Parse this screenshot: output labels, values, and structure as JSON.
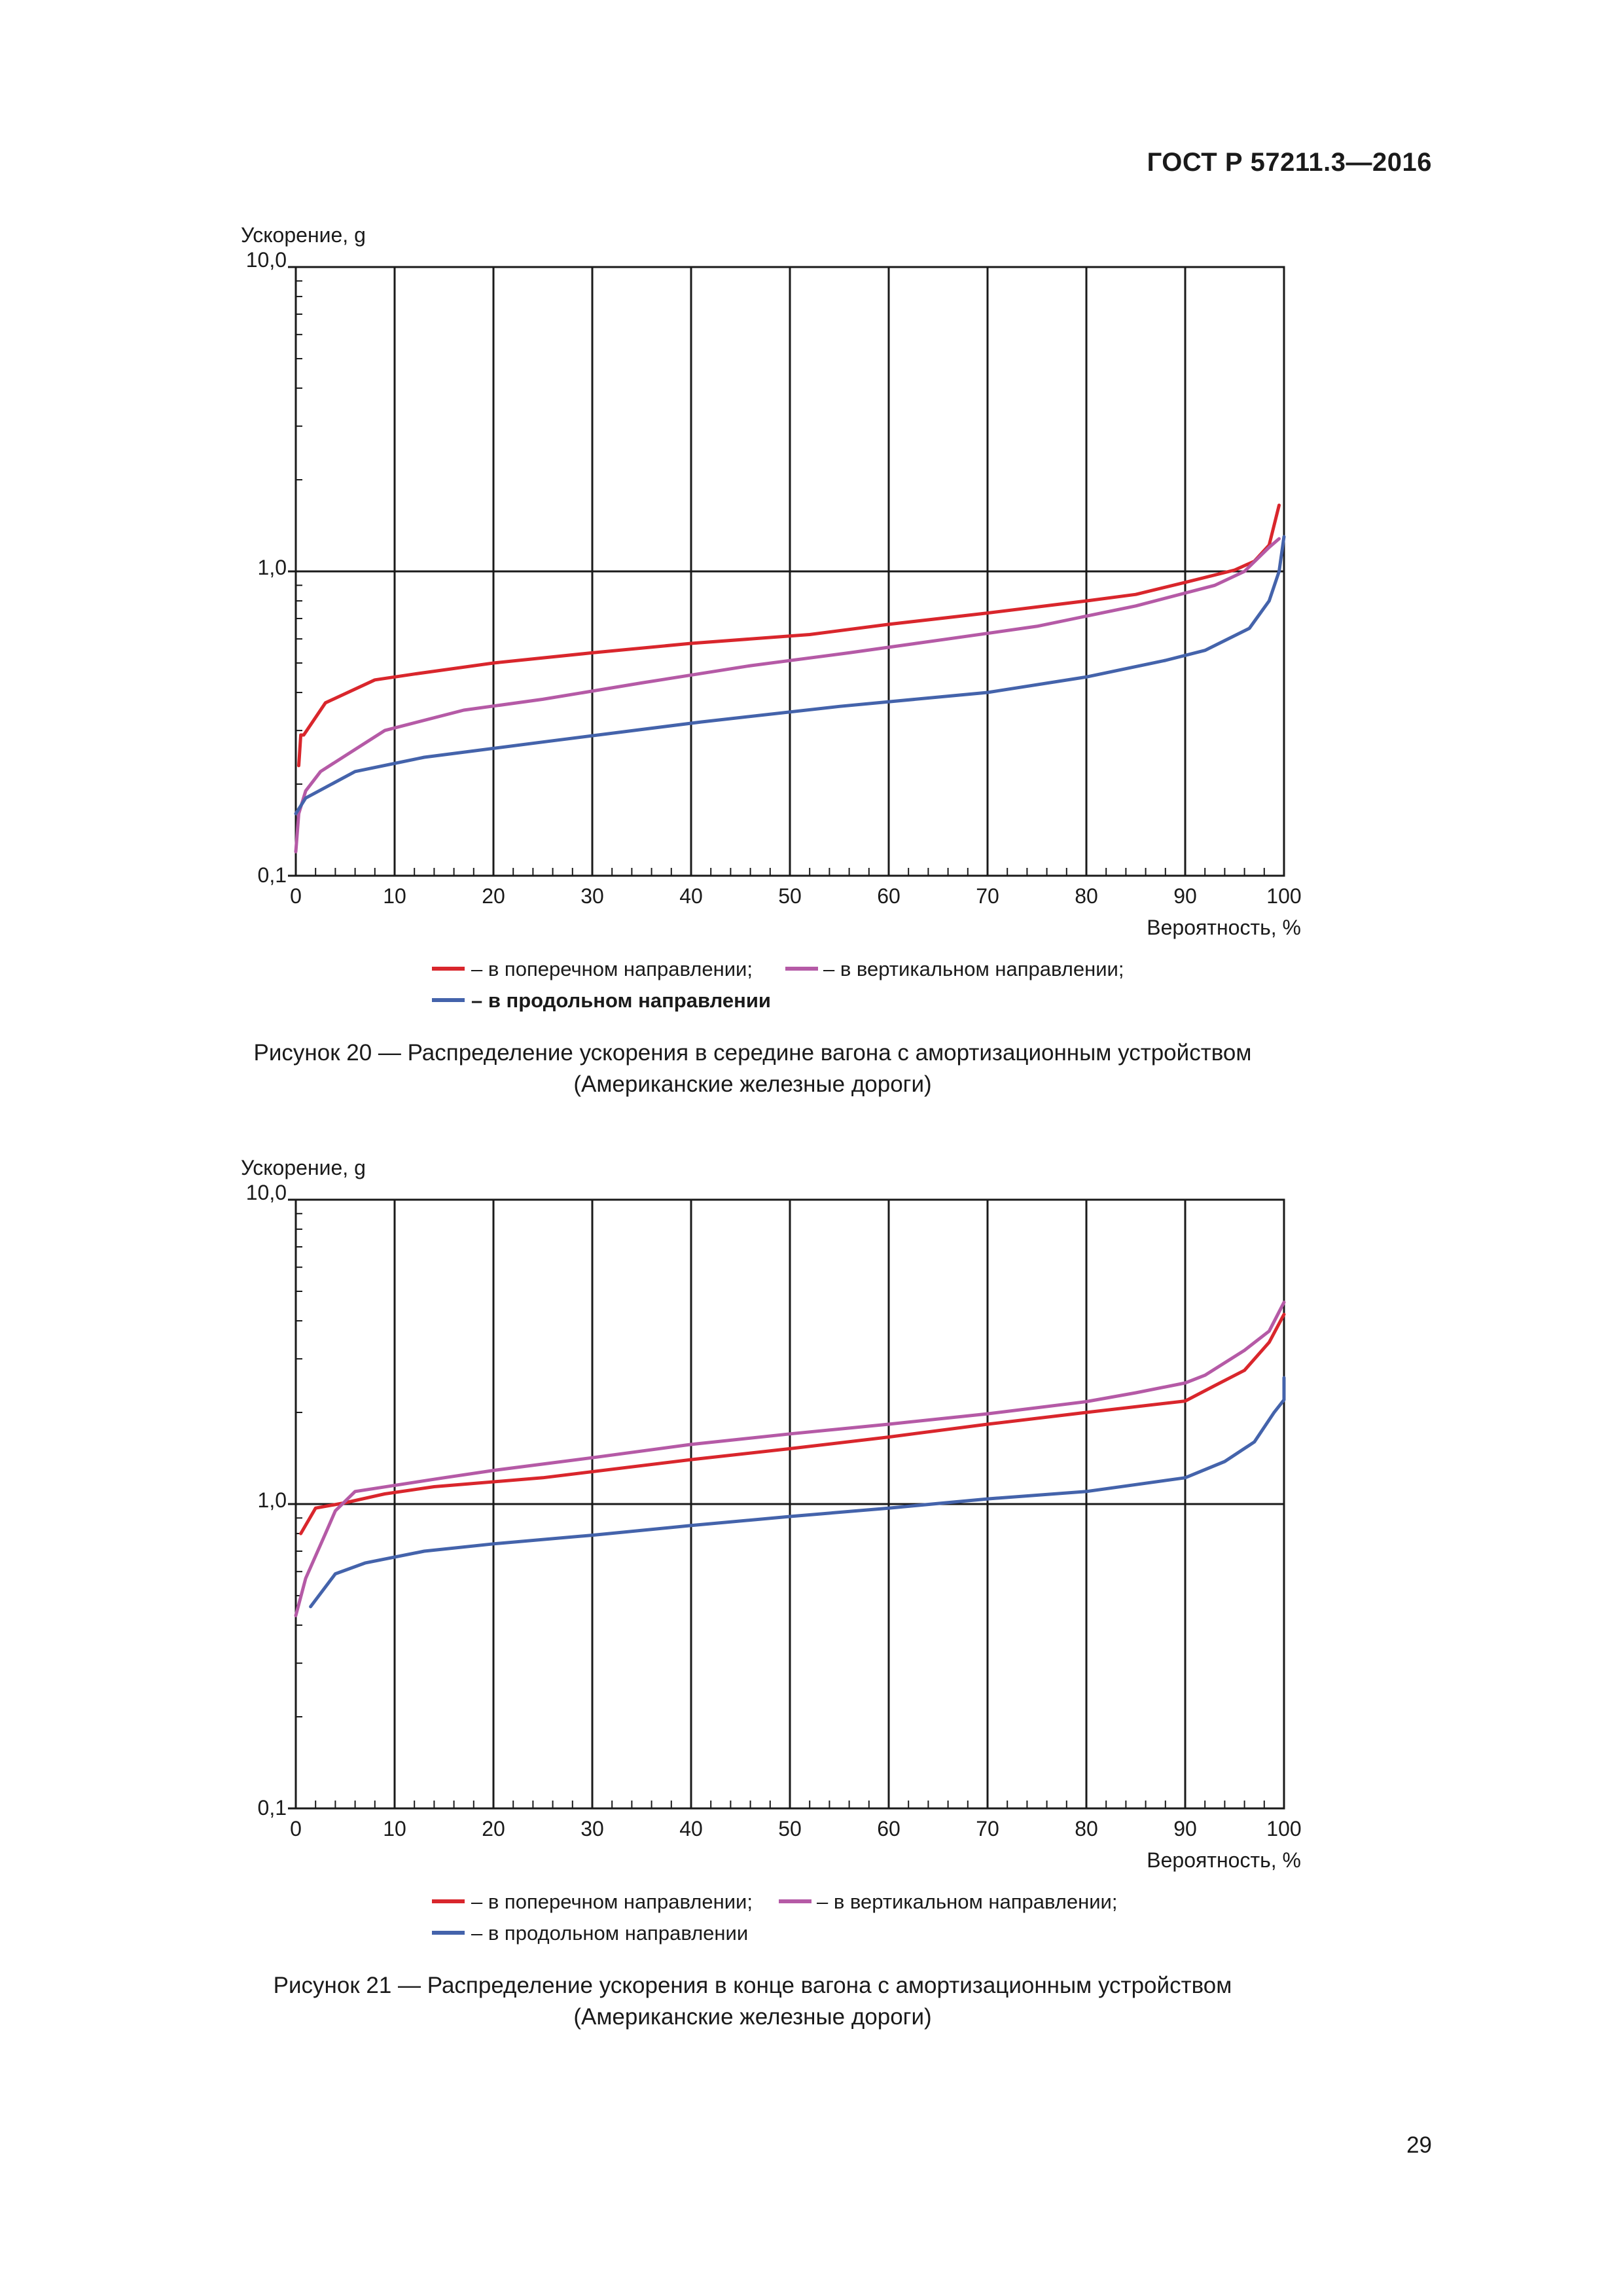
{
  "header": {
    "doc_code": "ГОСТ Р 57211.3—2016"
  },
  "colors": {
    "transverse": "#d9262c",
    "vertical": "#b55aa6",
    "longitudinal": "#4463ab",
    "grid": "#1a1a1a"
  },
  "figures": [
    {
      "caption_line1": "Рисунок 20 — Распределение ускорения в середине вагона с амортизационным устройством",
      "caption_line2": "(Американские железные дороги)",
      "legend": {
        "transverse": "– в поперечном направлении;",
        "vertical": "– в вертикальном направлении;",
        "longitudinal": "– в продольном направлении"
      }
    },
    {
      "caption_line1": "Рисунок 21 — Распределение ускорения в конце вагона с амортизационным устройством",
      "caption_line2": "(Американские железные дороги)",
      "legend": {
        "transverse": "– в поперечном направлении;",
        "vertical": "– в вертикальном направлении;",
        "longitudinal": "– в продольном направлении"
      }
    }
  ],
  "chart_data": [
    {
      "type": "line",
      "title": "Рисунок 20 — Распределение ускорения в середине вагона с амортизационным устройством",
      "ylabel": "Ускорение, g",
      "xlabel": "Вероятность, %",
      "yscale": "log",
      "ylim": [
        0.1,
        10.0
      ],
      "xlim": [
        0,
        100
      ],
      "y_ticks": [
        "10,0",
        "1,0",
        "0,1"
      ],
      "x_ticks": [
        "0",
        "10",
        "20",
        "30",
        "40",
        "50",
        "60",
        "70",
        "80",
        "90",
        "100"
      ],
      "series": [
        {
          "name": "в поперечном направлении",
          "color": "#d9262c",
          "x": [
            0.3,
            0.5,
            0.8,
            3,
            8,
            12,
            20,
            30,
            40,
            52,
            60,
            70,
            80,
            85,
            90,
            95,
            97,
            98.5,
            99.5
          ],
          "y": [
            0.23,
            0.29,
            0.29,
            0.37,
            0.44,
            0.46,
            0.5,
            0.54,
            0.58,
            0.62,
            0.67,
            0.73,
            0.8,
            0.84,
            0.92,
            1.01,
            1.08,
            1.22,
            1.65
          ]
        },
        {
          "name": "в вертикальном направлении",
          "color": "#b55aa6",
          "x": [
            0,
            0.3,
            1,
            2.5,
            9,
            17,
            25,
            35,
            46,
            56,
            66,
            75,
            85,
            93,
            96,
            98.5,
            99.5
          ],
          "y": [
            0.12,
            0.16,
            0.19,
            0.22,
            0.3,
            0.35,
            0.38,
            0.43,
            0.49,
            0.54,
            0.6,
            0.66,
            0.77,
            0.9,
            1.0,
            1.2,
            1.28
          ]
        },
        {
          "name": "в продольном направлении",
          "color": "#4463ab",
          "x": [
            0,
            1,
            6,
            13,
            25,
            41,
            55,
            70,
            80,
            88,
            92,
            96.5,
            98.5,
            99.5,
            100
          ],
          "y": [
            0.16,
            0.18,
            0.22,
            0.245,
            0.275,
            0.32,
            0.36,
            0.4,
            0.45,
            0.51,
            0.55,
            0.65,
            0.8,
            1.0,
            1.3
          ]
        }
      ]
    },
    {
      "type": "line",
      "title": "Рисунок 21 — Распределение ускорения в конце вагона с амортизационным устройством",
      "ylabel": "Ускорение, g",
      "xlabel": "Вероятность, %",
      "yscale": "log",
      "ylim": [
        0.1,
        10.0
      ],
      "xlim": [
        0,
        100
      ],
      "y_ticks": [
        "10,0",
        "1,0",
        "0,1"
      ],
      "x_ticks": [
        "0",
        "10",
        "20",
        "30",
        "40",
        "50",
        "60",
        "70",
        "80",
        "90",
        "100"
      ],
      "series": [
        {
          "name": "в поперечном направлении",
          "color": "#d9262c",
          "x": [
            0.5,
            2,
            5,
            9,
            14,
            25,
            40,
            50,
            60,
            70,
            80,
            90,
            93,
            96,
            98.5,
            100
          ],
          "y": [
            0.8,
            0.97,
            1.01,
            1.08,
            1.14,
            1.22,
            1.4,
            1.52,
            1.66,
            1.83,
            2.0,
            2.18,
            2.45,
            2.75,
            3.4,
            4.2
          ]
        },
        {
          "name": "в вертикальном направлении",
          "color": "#b55aa6",
          "x": [
            0,
            1,
            3,
            4,
            6,
            15,
            20,
            30,
            40,
            50,
            60,
            70,
            80,
            85,
            90,
            92,
            96,
            98.5,
            100
          ],
          "y": [
            0.43,
            0.57,
            0.8,
            0.95,
            1.1,
            1.22,
            1.29,
            1.42,
            1.57,
            1.7,
            1.83,
            1.98,
            2.17,
            2.32,
            2.5,
            2.65,
            3.2,
            3.7,
            4.6
          ]
        },
        {
          "name": "в продольном направлении",
          "color": "#4463ab",
          "x": [
            1.5,
            4,
            7,
            13,
            20,
            30,
            40,
            50,
            60,
            70,
            80,
            90,
            94,
            97,
            99,
            100,
            100
          ],
          "y": [
            0.46,
            0.59,
            0.64,
            0.7,
            0.74,
            0.79,
            0.85,
            0.91,
            0.97,
            1.04,
            1.1,
            1.22,
            1.38,
            1.6,
            2.0,
            2.2,
            2.6
          ]
        }
      ]
    }
  ],
  "page": {
    "number": "29"
  }
}
